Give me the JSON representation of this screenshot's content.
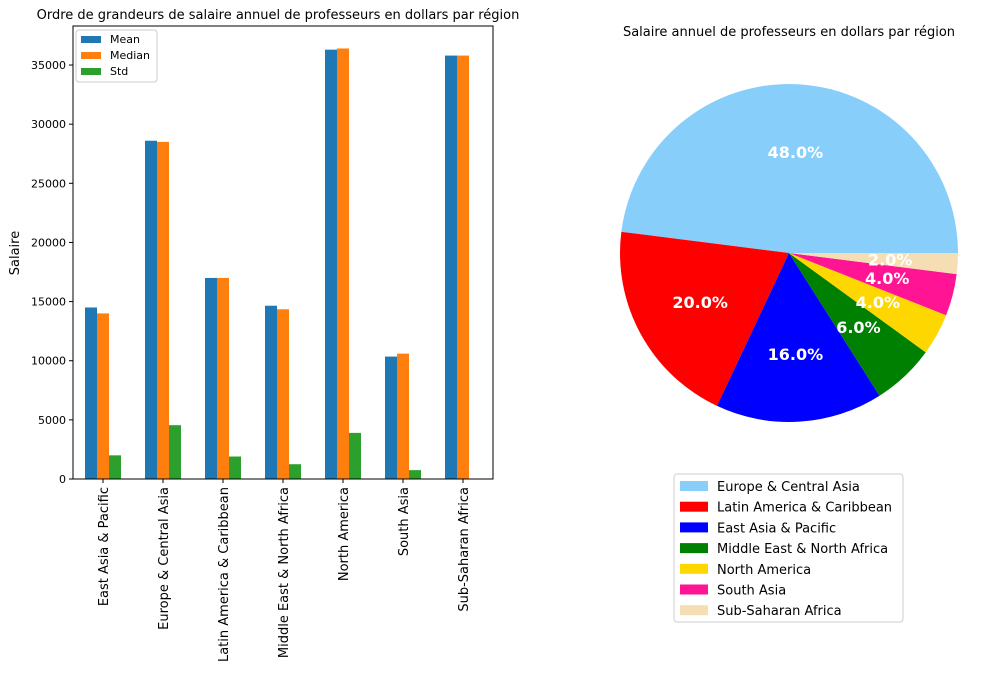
{
  "chart_data": [
    {
      "type": "bar",
      "title": "Ordre de grandeurs de salaire annuel de professeurs en dollars par région",
      "xlabel": "",
      "ylabel": "Salaire",
      "categories": [
        "East Asia & Pacific",
        "Europe & Central Asia",
        "Latin America & Caribbean",
        "Middle East & North Africa",
        "North America",
        "South Asia",
        "Sub-Saharan Africa"
      ],
      "series": [
        {
          "name": "Mean",
          "color": "#1f77b4",
          "values": [
            14500,
            28600,
            17000,
            14650,
            36300,
            10350,
            35800
          ]
        },
        {
          "name": "Median",
          "color": "#ff7f0e",
          "values": [
            14000,
            28500,
            17000,
            14350,
            36400,
            10600,
            35800
          ]
        },
        {
          "name": "Std",
          "color": "#2ca02c",
          "values": [
            2000,
            4550,
            1900,
            1250,
            3900,
            750,
            0
          ]
        }
      ],
      "ylim": [
        0,
        38300
      ],
      "yticks": [
        0,
        5000,
        10000,
        15000,
        20000,
        25000,
        30000,
        35000
      ],
      "legend": "top-left",
      "grid": false
    },
    {
      "type": "pie",
      "title": "Salaire annuel de professeurs en dollars par région",
      "labels": [
        "Europe & Central Asia",
        "Latin America & Caribbean",
        "East Asia & Pacific",
        "Middle East & North Africa",
        "North America",
        "South Asia",
        "Sub-Saharan Africa"
      ],
      "values": [
        48.0,
        20.0,
        16.0,
        6.0,
        4.0,
        4.0,
        2.0
      ],
      "autopct": [
        "48.0%",
        "20.0%",
        "16.0%",
        "6.0%",
        "4.0%",
        "4.0%",
        "2.0%"
      ],
      "colors": [
        "#87cefa",
        "#ff0000",
        "#0000ff",
        "#008000",
        "#ffd700",
        "#ff1493",
        "#f5deb3"
      ],
      "legend": "bottom"
    }
  ]
}
